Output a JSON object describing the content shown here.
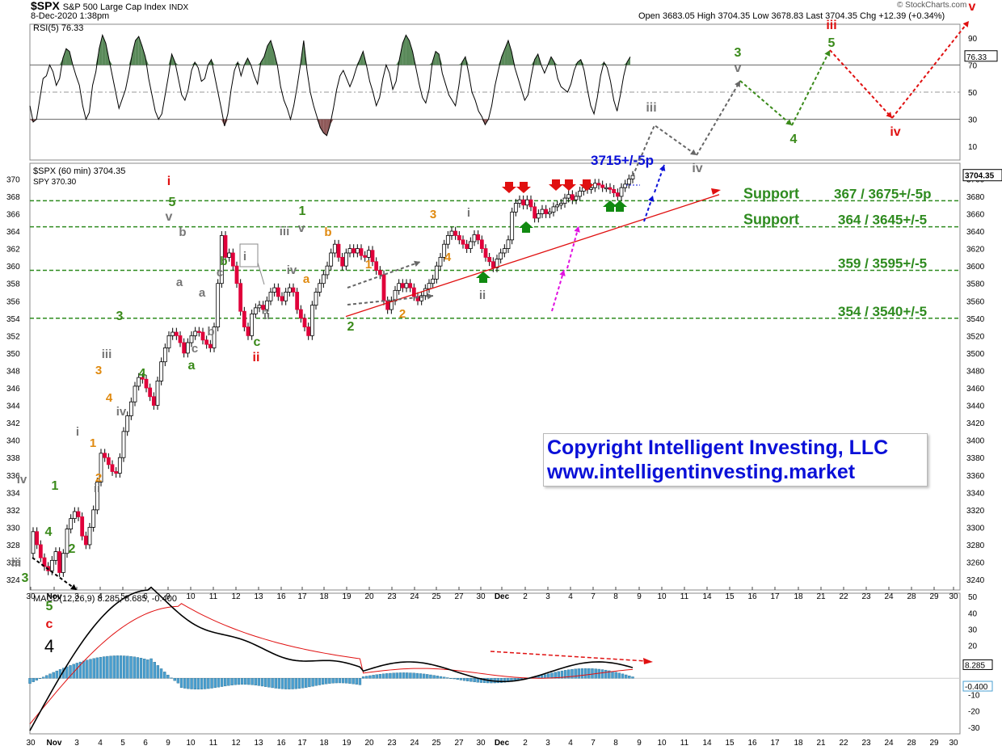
{
  "header": {
    "symbol": "$SPX",
    "name": "S&P 500 Large Cap Index",
    "exchange": "INDX",
    "datetime": "8-Dec-2020 1:38pm",
    "ohlc": "Open 3683.05   High 3704.35   Low 3678.83   Last 3704.35   Chg +12.39 (+0.34%)",
    "watermark": "© StockCharts.com"
  },
  "copyright": {
    "line1": "Copyright Intelligent Investing, LLC",
    "line2": "www.intelligentinvesting.market"
  },
  "colors": {
    "up": "#ffffff",
    "down": "#e0003a",
    "support": "#2e8b1f",
    "trend": "#e01010",
    "macd_hist": "#4a9fd0",
    "rsi_fill_hi": "#5a8a5a",
    "rsi_fill_lo": "#8f5a5a"
  },
  "chart_data": [
    {
      "type": "line",
      "panel": "RSI",
      "legend": "RSI(5) 76.33",
      "last_label": "76.33",
      "ylim": [
        0,
        100
      ],
      "yticks": [
        10,
        30,
        50,
        70,
        90
      ],
      "reference_lines": [
        30,
        50,
        70
      ],
      "values": [
        40,
        28,
        30,
        45,
        60,
        62,
        70,
        65,
        55,
        60,
        75,
        82,
        80,
        70,
        62,
        55,
        40,
        30,
        35,
        55,
        65,
        82,
        92,
        86,
        74,
        62,
        50,
        38,
        45,
        52,
        64,
        78,
        88,
        91,
        84,
        76,
        60,
        48,
        36,
        30,
        34,
        48,
        62,
        78,
        72,
        60,
        48,
        44,
        52,
        66,
        72,
        68,
        58,
        60,
        70,
        74,
        62,
        50,
        38,
        25,
        34,
        52,
        66,
        72,
        62,
        70,
        75,
        70,
        62,
        56,
        72,
        76,
        84,
        88,
        80,
        70,
        54,
        44,
        38,
        30,
        40,
        54,
        70,
        88,
        66,
        50,
        40,
        32,
        24,
        20,
        18,
        26,
        38,
        52,
        62,
        66,
        60,
        54,
        60,
        68,
        74,
        80,
        70,
        58,
        50,
        40,
        46,
        60,
        70,
        64,
        52,
        58,
        74,
        86,
        92,
        88,
        80,
        68,
        56,
        46,
        42,
        52,
        72,
        80,
        78,
        64,
        56,
        48,
        44,
        40,
        54,
        72,
        76,
        64,
        50,
        44,
        36,
        32,
        26,
        30,
        40,
        55,
        66,
        76,
        82,
        88,
        80,
        68,
        60,
        52,
        44,
        48,
        62,
        74,
        78,
        70,
        64,
        70,
        76,
        72,
        60,
        54,
        52,
        50,
        56,
        66,
        72,
        74,
        66,
        52,
        40,
        34,
        46,
        62,
        72,
        68,
        58,
        44,
        36,
        48,
        62,
        72,
        76
      ]
    },
    {
      "type": "candlestick",
      "panel": "Price",
      "legend": "$SPX (60 min) 3704.35",
      "legend2": "SPY 370.30",
      "last_label": "3704.35",
      "ylim": [
        3228,
        3718
      ],
      "yticks_right": [
        3240,
        3260,
        3280,
        3300,
        3320,
        3340,
        3360,
        3380,
        3400,
        3420,
        3440,
        3460,
        3480,
        3500,
        3520,
        3540,
        3560,
        3580,
        3600,
        3620,
        3640,
        3660,
        3680,
        3700
      ],
      "yticks_left": [
        324,
        326,
        328,
        330,
        332,
        334,
        336,
        338,
        340,
        342,
        344,
        346,
        348,
        350,
        352,
        354,
        356,
        358,
        360,
        362,
        364,
        366,
        368,
        370
      ],
      "x_days": [
        "30",
        "Nov",
        "3",
        "4",
        "5",
        "6",
        "9",
        "10",
        "11",
        "12",
        "13",
        "16",
        "17",
        "18",
        "19",
        "20",
        "23",
        "24",
        "25",
        "27",
        "30",
        "Dec",
        "2",
        "3",
        "4",
        "7",
        "8",
        "9",
        "10",
        "11",
        "14",
        "15",
        "16",
        "17",
        "18",
        "21",
        "22",
        "23",
        "24",
        "28",
        "29",
        "30"
      ],
      "support_levels": [
        {
          "price": 3675,
          "label": "Support",
          "value_label": "367 / 3675+/-5p"
        },
        {
          "price": 3645,
          "label": "Support",
          "value_label": "364 / 3645+/-5"
        },
        {
          "price": 3595,
          "label": "",
          "value_label": "359 / 3595+/-5"
        },
        {
          "price": 3540,
          "label": "",
          "value_label": "354 / 3540+/-5"
        }
      ],
      "target_label": "3715+/-5p",
      "closes": [
        3295,
        3280,
        3265,
        3255,
        3250,
        3262,
        3272,
        3248,
        3270,
        3298,
        3310,
        3318,
        3312,
        3290,
        3280,
        3300,
        3320,
        3352,
        3385,
        3380,
        3372,
        3364,
        3362,
        3380,
        3410,
        3428,
        3444,
        3462,
        3472,
        3470,
        3460,
        3450,
        3440,
        3468,
        3490,
        3506,
        3520,
        3524,
        3520,
        3512,
        3500,
        3512,
        3520,
        3525,
        3524,
        3515,
        3510,
        3506,
        3530,
        3580,
        3635,
        3610,
        3615,
        3600,
        3580,
        3548,
        3530,
        3520,
        3545,
        3552,
        3555,
        3550,
        3560,
        3570,
        3575,
        3565,
        3560,
        3570,
        3575,
        3570,
        3550,
        3540,
        3530,
        3520,
        3555,
        3570,
        3580,
        3590,
        3600,
        3615,
        3625,
        3610,
        3600,
        3615,
        3620,
        3615,
        3620,
        3612,
        3610,
        3618,
        3605,
        3595,
        3590,
        3560,
        3550,
        3560,
        3572,
        3580,
        3575,
        3580,
        3575,
        3565,
        3560,
        3566,
        3574,
        3580,
        3585,
        3600,
        3610,
        3625,
        3635,
        3640,
        3635,
        3630,
        3625,
        3620,
        3628,
        3636,
        3630,
        3620,
        3610,
        3605,
        3598,
        3608,
        3615,
        3620,
        3630,
        3662,
        3672,
        3676,
        3670,
        3676,
        3668,
        3655,
        3660,
        3665,
        3660,
        3662,
        3668,
        3670,
        3672,
        3678,
        3682,
        3676,
        3680,
        3686,
        3690,
        3688,
        3690,
        3695,
        3693,
        3690,
        3690,
        3688,
        3684,
        3680,
        3690,
        3694,
        3700,
        3704
      ]
    },
    {
      "type": "bar",
      "panel": "MACD",
      "legend": "MACD(12,26,9) 8.285, 8.685, -0.400",
      "last_labels": [
        "8.285",
        "-0.400"
      ],
      "ylim": [
        -34,
        52
      ],
      "yticks": [
        -30,
        -20,
        -10,
        10,
        20,
        30,
        40,
        50
      ]
    }
  ],
  "annotations": [
    {
      "t": "i",
      "c": "#e01010",
      "x": 209,
      "y": 229,
      "s": 16,
      "b": true
    },
    {
      "t": "5",
      "c": "#3a8a1a",
      "x": 213,
      "y": 255,
      "s": 16,
      "b": true
    },
    {
      "t": "v",
      "c": "#777777",
      "x": 209,
      "y": 273,
      "s": 16,
      "b": true
    },
    {
      "t": "b",
      "c": "#777777",
      "x": 226,
      "y": 292,
      "s": 15,
      "b": true
    },
    {
      "t": "a",
      "c": "#777777",
      "x": 222,
      "y": 354,
      "s": 15,
      "b": true
    },
    {
      "t": "b",
      "c": "#777777",
      "x": 261,
      "y": 415,
      "s": 15,
      "b": true
    },
    {
      "t": "c",
      "c": "#777777",
      "x": 241,
      "y": 436,
      "s": 15,
      "b": true
    },
    {
      "t": "a",
      "c": "#3a8a1a",
      "x": 237,
      "y": 457,
      "s": 16,
      "b": true
    },
    {
      "t": "a",
      "c": "#777777",
      "x": 250,
      "y": 367,
      "s": 15,
      "b": true
    },
    {
      "t": "c",
      "c": "#777777",
      "x": 272,
      "y": 342,
      "s": 15,
      "b": true
    },
    {
      "t": "b",
      "c": "#3a8a1a",
      "x": 277,
      "y": 328,
      "s": 15,
      "b": true
    },
    {
      "t": "i",
      "c": "#777777",
      "x": 303,
      "y": 322,
      "s": 15,
      "b": true
    },
    {
      "t": "ii",
      "c": "#777777",
      "x": 330,
      "y": 395,
      "s": 15,
      "b": true
    },
    {
      "t": "c",
      "c": "#3a8a1a",
      "x": 318,
      "y": 428,
      "s": 16,
      "b": true
    },
    {
      "t": "ii",
      "c": "#e01010",
      "x": 317,
      "y": 447,
      "s": 16,
      "b": true
    },
    {
      "t": "iii",
      "c": "#777777",
      "x": 352,
      "y": 291,
      "s": 15,
      "b": true
    },
    {
      "t": "iv",
      "c": "#777777",
      "x": 361,
      "y": 339,
      "s": 15,
      "b": true
    },
    {
      "t": "1",
      "c": "#3a8a1a",
      "x": 374,
      "y": 266,
      "s": 16,
      "b": true
    },
    {
      "t": "v",
      "c": "#777777",
      "x": 373,
      "y": 287,
      "s": 15,
      "b": true
    },
    {
      "t": "a",
      "c": "#e08a10",
      "x": 379,
      "y": 350,
      "s": 15,
      "b": true
    },
    {
      "t": "b",
      "c": "#e08a10",
      "x": 406,
      "y": 292,
      "s": 15,
      "b": true
    },
    {
      "t": "1",
      "c": "#e08a10",
      "x": 456,
      "y": 332,
      "s": 15,
      "b": true
    },
    {
      "t": "2",
      "c": "#3a8a1a",
      "x": 434,
      "y": 409,
      "s": 16,
      "b": true
    },
    {
      "t": "2",
      "c": "#e08a10",
      "x": 498,
      "y": 393,
      "s": 15,
      "b": true
    },
    {
      "t": "3",
      "c": "#e08a10",
      "x": 536,
      "y": 270,
      "s": 15,
      "b": true
    },
    {
      "t": "4",
      "c": "#e08a10",
      "x": 554,
      "y": 323,
      "s": 15,
      "b": true
    },
    {
      "t": "i",
      "c": "#777777",
      "x": 580,
      "y": 268,
      "s": 15,
      "b": true
    },
    {
      "t": "ii",
      "c": "#777777",
      "x": 597,
      "y": 370,
      "s": 15,
      "b": true
    },
    {
      "t": "3",
      "c": "#3a8a1a",
      "x": 148,
      "y": 396,
      "s": 16,
      "b": true
    },
    {
      "t": "4",
      "c": "#3a8a1a",
      "x": 176,
      "y": 467,
      "s": 16,
      "b": true
    },
    {
      "t": "iii",
      "c": "#777777",
      "x": 132,
      "y": 443,
      "s": 15,
      "b": true
    },
    {
      "t": "3",
      "c": "#e08a10",
      "x": 122,
      "y": 463,
      "s": 15,
      "b": true
    },
    {
      "t": "4",
      "c": "#e08a10",
      "x": 135,
      "y": 497,
      "s": 15,
      "b": true
    },
    {
      "t": "iv",
      "c": "#777777",
      "x": 150,
      "y": 514,
      "s": 15,
      "b": true
    },
    {
      "t": "i",
      "c": "#777777",
      "x": 96,
      "y": 539,
      "s": 15,
      "b": true
    },
    {
      "t": "1",
      "c": "#e08a10",
      "x": 115,
      "y": 553,
      "s": 15,
      "b": true
    },
    {
      "t": "2",
      "c": "#e08a10",
      "x": 122,
      "y": 596,
      "s": 15,
      "b": true
    },
    {
      "t": "ii",
      "c": "#777777",
      "x": 120,
      "y": 609,
      "s": 15,
      "b": true
    },
    {
      "t": "iv",
      "c": "#777777",
      "x": 27,
      "y": 598,
      "s": 15,
      "b": true
    },
    {
      "t": "1",
      "c": "#3a8a1a",
      "x": 68,
      "y": 606,
      "s": 16,
      "b": true
    },
    {
      "t": "4",
      "c": "#3a8a1a",
      "x": 60,
      "y": 663,
      "s": 16,
      "b": true
    },
    {
      "t": "2",
      "c": "#3a8a1a",
      "x": 89,
      "y": 684,
      "s": 16,
      "b": true
    },
    {
      "t": "iii",
      "c": "#777777",
      "x": 20,
      "y": 701,
      "s": 15,
      "b": true
    },
    {
      "t": "3",
      "c": "#3a8a1a",
      "x": 31,
      "y": 720,
      "s": 16,
      "b": true
    },
    {
      "t": "5",
      "c": "#3a8a1a",
      "x": 61,
      "y": 755,
      "s": 16,
      "b": true
    },
    {
      "t": "c",
      "c": "#e01010",
      "x": 61,
      "y": 777,
      "s": 16,
      "b": true
    },
    {
      "t": "4",
      "c": "#000000",
      "x": 61,
      "y": 807,
      "s": 22,
      "b": false
    },
    {
      "t": "iii",
      "c": "#777777",
      "x": 806,
      "y": 138,
      "s": 16,
      "b": true
    },
    {
      "t": "iv",
      "c": "#777777",
      "x": 863,
      "y": 213,
      "s": 16,
      "b": true
    },
    {
      "t": "3",
      "c": "#3a8a1a",
      "x": 913,
      "y": 70,
      "s": 16,
      "b": true
    },
    {
      "t": "v",
      "c": "#777777",
      "x": 913,
      "y": 89,
      "s": 16,
      "b": true
    },
    {
      "t": "4",
      "c": "#3a8a1a",
      "x": 982,
      "y": 177,
      "s": 16,
      "b": true
    },
    {
      "t": "iii",
      "c": "#e01010",
      "x": 1029,
      "y": 36,
      "s": 16,
      "b": true
    },
    {
      "t": "5",
      "c": "#3a8a1a",
      "x": 1029,
      "y": 58,
      "s": 16,
      "b": true
    },
    {
      "t": "iv",
      "c": "#e01010",
      "x": 1108,
      "y": 168,
      "s": 16,
      "b": true
    },
    {
      "t": "v",
      "c": "#e01010",
      "x": 1203,
      "y": 13,
      "s": 16,
      "b": true
    }
  ]
}
